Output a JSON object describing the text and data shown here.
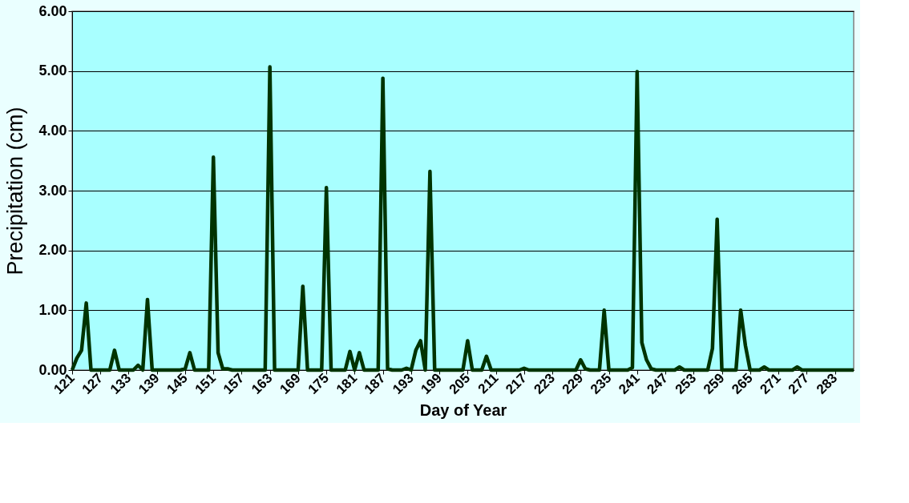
{
  "chart_data": {
    "type": "line",
    "xlabel": "Day of Year",
    "ylabel": "Precipitation (cm)",
    "x": [
      121,
      122,
      123,
      124,
      125,
      126,
      127,
      128,
      129,
      130,
      131,
      132,
      133,
      134,
      135,
      136,
      137,
      138,
      139,
      140,
      141,
      142,
      143,
      144,
      145,
      146,
      147,
      148,
      149,
      150,
      151,
      152,
      153,
      154,
      155,
      156,
      157,
      158,
      159,
      160,
      161,
      162,
      163,
      164,
      165,
      166,
      167,
      168,
      169,
      170,
      171,
      172,
      173,
      174,
      175,
      176,
      177,
      178,
      179,
      180,
      181,
      182,
      183,
      184,
      185,
      186,
      187,
      188,
      189,
      190,
      191,
      192,
      193,
      194,
      195,
      196,
      197,
      198,
      199,
      200,
      201,
      202,
      203,
      204,
      205,
      206,
      207,
      208,
      209,
      210,
      211,
      212,
      213,
      214,
      215,
      216,
      217,
      218,
      219,
      220,
      221,
      222,
      223,
      224,
      225,
      226,
      227,
      228,
      229,
      230,
      231,
      232,
      233,
      234,
      235,
      236,
      237,
      238,
      239,
      240,
      241,
      242,
      243,
      244,
      245,
      246,
      247,
      248,
      249,
      250,
      251,
      252,
      253,
      254,
      255,
      256,
      257,
      258,
      259,
      260,
      261,
      262,
      263,
      264,
      265,
      266,
      267,
      268,
      269,
      270,
      271,
      272,
      273,
      274,
      275,
      276,
      277,
      278,
      279,
      280,
      281,
      282,
      283,
      284,
      285,
      286,
      287
    ],
    "series": [
      {
        "color": "#003300",
        "values": [
          0,
          0.2,
          0.33,
          1.12,
          0,
          0,
          0,
          0,
          0,
          0.33,
          0,
          0,
          0,
          0,
          0.08,
          0,
          1.18,
          0,
          0,
          0,
          0,
          0,
          0,
          0,
          0.02,
          0.29,
          0,
          0,
          0,
          0,
          3.56,
          0.29,
          0.02,
          0.02,
          0,
          0,
          0,
          0,
          0,
          0,
          0,
          0,
          5.07,
          0,
          0,
          0,
          0,
          0,
          0,
          1.4,
          0,
          0,
          0,
          0,
          3.05,
          0,
          0,
          0,
          0,
          0.31,
          0,
          0.29,
          0,
          0,
          0,
          0,
          4.88,
          0.02,
          0,
          0,
          0,
          0.03,
          0,
          0.33,
          0.49,
          0,
          3.32,
          0,
          0,
          0,
          0,
          0,
          0,
          0,
          0.49,
          0,
          0,
          0,
          0.23,
          0,
          0,
          0,
          0,
          0,
          0,
          0,
          0.03,
          0,
          0,
          0,
          0,
          0,
          0,
          0,
          0,
          0,
          0,
          0,
          0.17,
          0.02,
          0,
          0,
          0,
          1.0,
          0,
          0,
          0,
          0,
          0,
          0.04,
          4.99,
          0.46,
          0.17,
          0.02,
          0,
          0,
          0,
          0,
          0,
          0.05,
          0,
          0,
          0,
          0,
          0,
          0,
          0.36,
          2.52,
          0,
          0,
          0,
          0,
          1.0,
          0.41,
          0,
          0,
          0,
          0.05,
          0,
          0,
          0,
          0,
          0,
          0,
          0.05,
          0,
          0,
          0,
          0,
          0,
          0,
          0,
          0,
          0,
          0,
          0,
          0
        ]
      }
    ],
    "xlim": [
      121,
      287
    ],
    "xticks": [
      121,
      127,
      133,
      139,
      145,
      151,
      157,
      163,
      169,
      175,
      181,
      187,
      193,
      199,
      205,
      211,
      217,
      223,
      229,
      235,
      241,
      247,
      253,
      259,
      265,
      271,
      277,
      283
    ],
    "ylim": [
      0,
      6
    ],
    "yticks": [
      {
        "value": 0,
        "label": "0.00"
      },
      {
        "value": 1,
        "label": "1.00"
      },
      {
        "value": 2,
        "label": "2.00"
      },
      {
        "value": 3,
        "label": "3.00"
      },
      {
        "value": 4,
        "label": "4.00"
      },
      {
        "value": 5,
        "label": "5.00"
      },
      {
        "value": 6,
        "label": "6.00"
      }
    ],
    "grid": "y",
    "legend": false,
    "marker": "none",
    "line_style": "solid"
  }
}
